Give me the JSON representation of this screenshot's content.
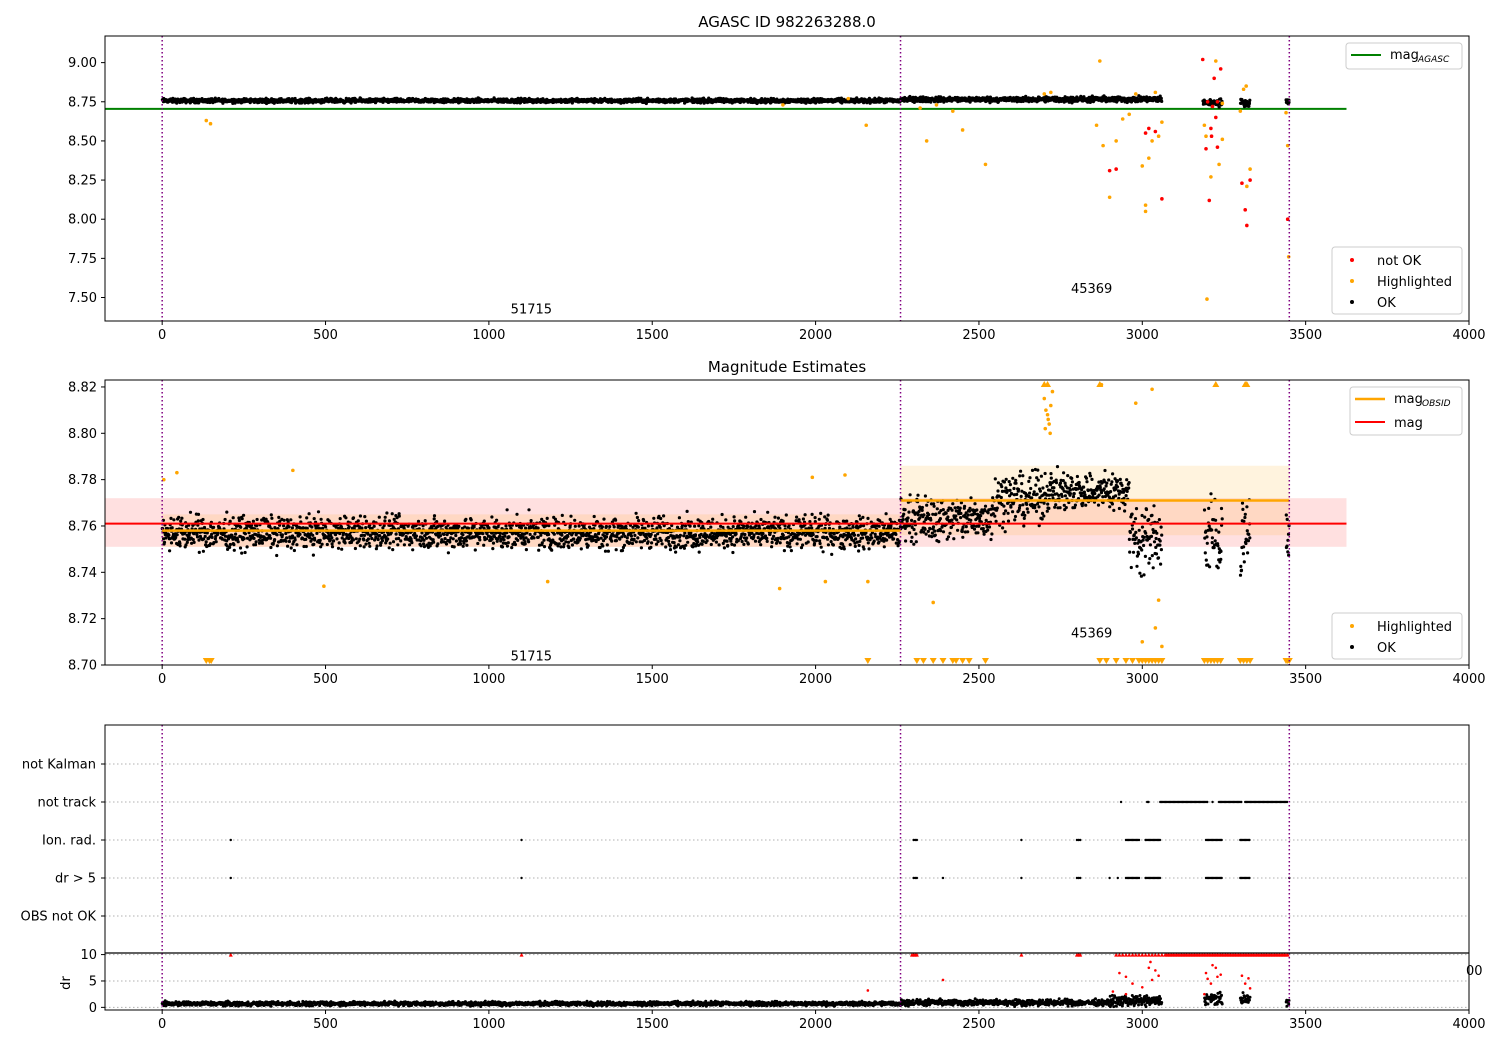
{
  "colors": {
    "ok": "#000000",
    "not_ok": "#ff0000",
    "highlighted": "#ffa500",
    "mag_agasc": "#008000",
    "mag_obsid": "#ffa500",
    "mag": "#ff0000",
    "obs_marker": "#800080"
  },
  "chart_data": [
    {
      "type": "scatter",
      "title": "AGASC ID 982263288.0",
      "xlim": [
        -175,
        4000
      ],
      "ylim": [
        7.35,
        9.17
      ],
      "xticks": [
        "0",
        "500",
        "1000",
        "1500",
        "2000",
        "2500",
        "3000",
        "3500",
        "4000"
      ],
      "yticks": [
        "7.50",
        "7.75",
        "8.00",
        "8.25",
        "8.50",
        "8.75",
        "9.00"
      ],
      "obs_boundaries": [
        0,
        2260,
        3450
      ],
      "obsid_labels": [
        {
          "text": "51715",
          "x": 1130,
          "y": 7.43
        },
        {
          "text": "45369",
          "x": 2845,
          "y": 7.56
        }
      ],
      "lines": [
        {
          "name": "mag_AGASC",
          "label_main": "mag",
          "label_sub": "AGASC",
          "y": 8.705,
          "x0": -175,
          "x1": 3625,
          "color": "#008000"
        }
      ],
      "series": [
        {
          "name": "not OK",
          "color": "#ff0000",
          "points": [
            [
              3185,
              9.02
            ],
            [
              3200,
              8.75
            ],
            [
              3215,
              8.72
            ],
            [
              3220,
              8.9
            ],
            [
              3230,
              8.46
            ],
            [
              3195,
              8.45
            ],
            [
              3210,
              8.58
            ],
            [
              3225,
              8.65
            ],
            [
              3205,
              8.12
            ],
            [
              3240,
              8.96
            ],
            [
              3305,
              8.23
            ],
            [
              3315,
              8.06
            ],
            [
              3320,
              7.96
            ],
            [
              3330,
              8.25
            ],
            [
              3010,
              8.55
            ],
            [
              3020,
              8.58
            ],
            [
              3040,
              8.56
            ],
            [
              3060,
              8.13
            ],
            [
              2900,
              8.31
            ],
            [
              2920,
              8.32
            ],
            [
              3445,
              8.0
            ],
            [
              3212,
              8.53
            ],
            [
              3230,
              8.75
            ]
          ]
        },
        {
          "name": "Highlighted",
          "color": "#ffa500",
          "points": [
            [
              135,
              8.63
            ],
            [
              148,
              8.61
            ],
            [
              2155,
              8.6
            ],
            [
              2320,
              8.71
            ],
            [
              2340,
              8.5
            ],
            [
              2370,
              8.73
            ],
            [
              2420,
              8.69
            ],
            [
              2450,
              8.57
            ],
            [
              2520,
              8.35
            ],
            [
              2870,
              9.01
            ],
            [
              2860,
              8.6
            ],
            [
              2880,
              8.47
            ],
            [
              2900,
              8.14
            ],
            [
              2920,
              8.5
            ],
            [
              2940,
              8.64
            ],
            [
              2960,
              8.67
            ],
            [
              2980,
              8.8
            ],
            [
              3000,
              8.34
            ],
            [
              3010,
              8.09
            ],
            [
              3010,
              8.05
            ],
            [
              3020,
              8.39
            ],
            [
              3030,
              8.5
            ],
            [
              3050,
              8.53
            ],
            [
              3060,
              8.62
            ],
            [
              3040,
              8.81
            ],
            [
              3190,
              8.6
            ],
            [
              3195,
              8.53
            ],
            [
              3198,
              7.49
            ],
            [
              3210,
              8.27
            ],
            [
              3225,
              9.01
            ],
            [
              3235,
              8.35
            ],
            [
              3245,
              8.51
            ],
            [
              3300,
              8.69
            ],
            [
              3310,
              8.83
            ],
            [
              3318,
              8.85
            ],
            [
              3320,
              8.21
            ],
            [
              3330,
              8.32
            ],
            [
              3440,
              8.68
            ],
            [
              3445,
              8.47
            ],
            [
              3448,
              7.76
            ],
            [
              2700,
              8.8
            ],
            [
              2720,
              8.81
            ],
            [
              2100,
              8.77
            ],
            [
              1900,
              8.73
            ],
            [
              3245,
              8.74
            ]
          ]
        }
      ],
      "ok_series": {
        "name": "OK",
        "color": "#000000",
        "segments": [
          [
            0,
            2260,
            8.757,
            0.012
          ],
          [
            2260,
            2700,
            8.765,
            0.014
          ],
          [
            2700,
            3060,
            8.765,
            0.016
          ],
          [
            3185,
            3245,
            8.745,
            0.02
          ],
          [
            3300,
            3330,
            8.745,
            0.02
          ],
          [
            3440,
            3450,
            8.75,
            0.015
          ]
        ]
      },
      "legends": [
        {
          "position": "upper right",
          "entries": [
            "mag_AGASC"
          ]
        },
        {
          "position": "lower right",
          "entries": [
            "not OK",
            "Highlighted",
            "OK"
          ]
        }
      ]
    },
    {
      "type": "scatter",
      "title": "Magnitude Estimates",
      "xlim": [
        -175,
        4000
      ],
      "ylim": [
        8.7,
        8.823
      ],
      "xticks": [
        "0",
        "500",
        "1000",
        "1500",
        "2000",
        "2500",
        "3000",
        "3500",
        "4000"
      ],
      "yticks": [
        "8.70",
        "8.72",
        "8.74",
        "8.76",
        "8.78",
        "8.80",
        "8.82"
      ],
      "obs_boundaries": [
        0,
        2260,
        3450
      ],
      "obsid_labels": [
        {
          "text": "51715",
          "x": 1130,
          "y": 8.704
        },
        {
          "text": "45369",
          "x": 2845,
          "y": 8.714
        }
      ],
      "lines": [
        {
          "name": "mag_OBSID",
          "label_main": "mag",
          "label_sub": "OBSID",
          "color": "#ffa500",
          "segments": [
            {
              "x0": 0,
              "x1": 2260,
              "y": 8.758,
              "band": [
                8.751,
                8.765
              ]
            },
            {
              "x0": 2260,
              "x1": 3450,
              "y": 8.771,
              "band": [
                8.756,
                8.786
              ]
            }
          ]
        },
        {
          "name": "mag",
          "label_main": "mag",
          "color": "#ff0000",
          "y": 8.761,
          "x0": -175,
          "x1": 3625,
          "band": [
            8.751,
            8.772
          ]
        }
      ],
      "series": [
        {
          "name": "Highlighted",
          "color": "#ffa500",
          "points": [
            [
              5,
              8.78
            ],
            [
              45,
              8.783
            ],
            [
              400,
              8.784
            ],
            [
              495,
              8.734
            ],
            [
              1180,
              8.736
            ],
            [
              1890,
              8.733
            ],
            [
              1990,
              8.781
            ],
            [
              2030,
              8.736
            ],
            [
              2090,
              8.782
            ],
            [
              2160,
              8.736
            ],
            [
              2360,
              8.727
            ],
            [
              2700,
              8.815
            ],
            [
              2705,
              8.81
            ],
            [
              2710,
              8.808
            ],
            [
              2712,
              8.806
            ],
            [
              2715,
              8.804
            ],
            [
              2720,
              8.812
            ],
            [
              2725,
              8.818
            ],
            [
              2703,
              8.802
            ],
            [
              2718,
              8.8
            ],
            [
              2980,
              8.813
            ],
            [
              3000,
              8.71
            ],
            [
              3030,
              8.819
            ],
            [
              3040,
              8.716
            ],
            [
              3050,
              8.728
            ],
            [
              3060,
              8.708
            ],
            [
              2875,
              8.821
            ]
          ]
        }
      ],
      "clipped_markers": {
        "bottom_x": [
          135,
          145,
          150,
          2160,
          2310,
          2330,
          2360,
          2390,
          2420,
          2430,
          2450,
          2470,
          2520,
          2870,
          2890,
          2920,
          2950,
          2970,
          2990,
          3000,
          3010,
          3020,
          3030,
          3040,
          3050,
          3060,
          3190,
          3200,
          3210,
          3220,
          3230,
          3240,
          3300,
          3310,
          3320,
          3330,
          3440,
          3445,
          3450
        ],
        "top_x": [
          2700,
          2710,
          2870,
          3225,
          3315,
          3320
        ]
      },
      "ok_series": {
        "name": "OK",
        "color": "#000000",
        "segments": [
          [
            0,
            2260,
            8.757,
            0.006
          ],
          [
            2260,
            2540,
            8.763,
            0.008
          ],
          [
            2540,
            2700,
            8.772,
            0.009
          ],
          [
            2700,
            2960,
            8.775,
            0.007
          ],
          [
            2960,
            3060,
            8.755,
            0.012
          ],
          [
            3190,
            3245,
            8.755,
            0.015
          ],
          [
            3300,
            3330,
            8.755,
            0.015
          ],
          [
            3440,
            3450,
            8.755,
            0.012
          ]
        ]
      },
      "legends": [
        {
          "position": "upper right",
          "entries": [
            "mag_OBSID",
            "mag"
          ]
        },
        {
          "position": "lower right",
          "entries": [
            "Highlighted",
            "OK"
          ]
        }
      ]
    },
    {
      "type": "scatter",
      "title": "",
      "xlim": [
        -175,
        4000
      ],
      "categories": [
        "OBS not OK",
        "dr > 5",
        "Ion. rad.",
        "not track",
        "not Kalman"
      ],
      "obs_boundaries": [
        0,
        2260,
        3450
      ],
      "flag_series": [
        {
          "name": "not track",
          "ranges": [
            [
              2935,
              2935
            ],
            [
              3015,
              3020
            ],
            [
              3055,
              3200
            ],
            [
              3215,
              3215
            ],
            [
              3235,
              3305
            ],
            [
              3315,
              3445
            ]
          ]
        },
        {
          "name": "Ion. rad.",
          "points_x": [
            210,
            1100,
            2300,
            2305,
            2310,
            2630,
            2800,
            2805,
            2810
          ],
          "ranges": [
            [
              2950,
              2990
            ],
            [
              3010,
              3055
            ],
            [
              3195,
              3245
            ],
            [
              3300,
              3330
            ]
          ]
        },
        {
          "name": "dr > 5",
          "points_x": [
            210,
            1100,
            2300,
            2305,
            2310,
            2390,
            2630,
            2800,
            2805,
            2810,
            2900,
            2925,
            3450
          ],
          "ranges": [
            [
              2950,
              2990
            ],
            [
              3010,
              3055
            ],
            [
              3195,
              3245
            ],
            [
              3300,
              3330
            ]
          ]
        }
      ]
    },
    {
      "type": "scatter",
      "ylabel": "dr",
      "xlim": [
        -175,
        4000
      ],
      "ylim": [
        -0.5,
        10.3
      ],
      "yticks": [
        "0",
        "5",
        "10"
      ],
      "xticks": [
        "0",
        "500",
        "1000",
        "1500",
        "2000",
        "2500",
        "3000",
        "3500",
        "4000"
      ],
      "overlap_tick_label": "00",
      "obs_boundaries": [
        0,
        2260,
        3450
      ],
      "series": [
        {
          "name": "dr clipped",
          "color": "#ff0000",
          "marker": "triangle",
          "points_x": [
            210,
            1100,
            2295,
            2300,
            2305,
            2310,
            2630,
            2800,
            2805,
            2810,
            2920,
            2930,
            2940,
            2950,
            2960,
            2970,
            2980,
            2990,
            3000,
            3010,
            3020,
            3030,
            3040,
            3050,
            3060
          ]
        },
        {
          "name": "dr > 5",
          "color": "#ff0000",
          "points": [
            [
              2160,
              3.2
            ],
            [
              2390,
              5.2
            ],
            [
              2930,
              6.5
            ],
            [
              2950,
              5.8
            ],
            [
              2970,
              4.5
            ],
            [
              3000,
              3.8
            ],
            [
              3020,
              7.5
            ],
            [
              3025,
              8.6
            ],
            [
              3030,
              5.2
            ],
            [
              3040,
              7.0
            ],
            [
              3050,
              6.0
            ],
            [
              3195,
              6.5
            ],
            [
              3200,
              5.4
            ],
            [
              3210,
              4.5
            ],
            [
              3215,
              8.0
            ],
            [
              3225,
              7.5
            ],
            [
              3230,
              5.8
            ],
            [
              3240,
              6.2
            ],
            [
              3305,
              6.0
            ],
            [
              3315,
              4.5
            ],
            [
              3325,
              5.5
            ],
            [
              3330,
              3.6
            ],
            [
              2910,
              3.0
            ],
            [
              3190,
              2.5
            ],
            [
              2950,
              2.5
            ]
          ]
        },
        {
          "name": "dr",
          "color": "#000000",
          "segments": [
            [
              0,
              2260,
              0.7,
              0.35
            ],
            [
              2260,
              2900,
              0.9,
              0.5
            ],
            [
              2900,
              3060,
              1.2,
              0.8
            ],
            [
              3190,
              3245,
              1.5,
              1.0
            ],
            [
              3300,
              3330,
              1.5,
              1.0
            ],
            [
              3440,
              3450,
              1.0,
              0.6
            ]
          ]
        }
      ]
    }
  ]
}
